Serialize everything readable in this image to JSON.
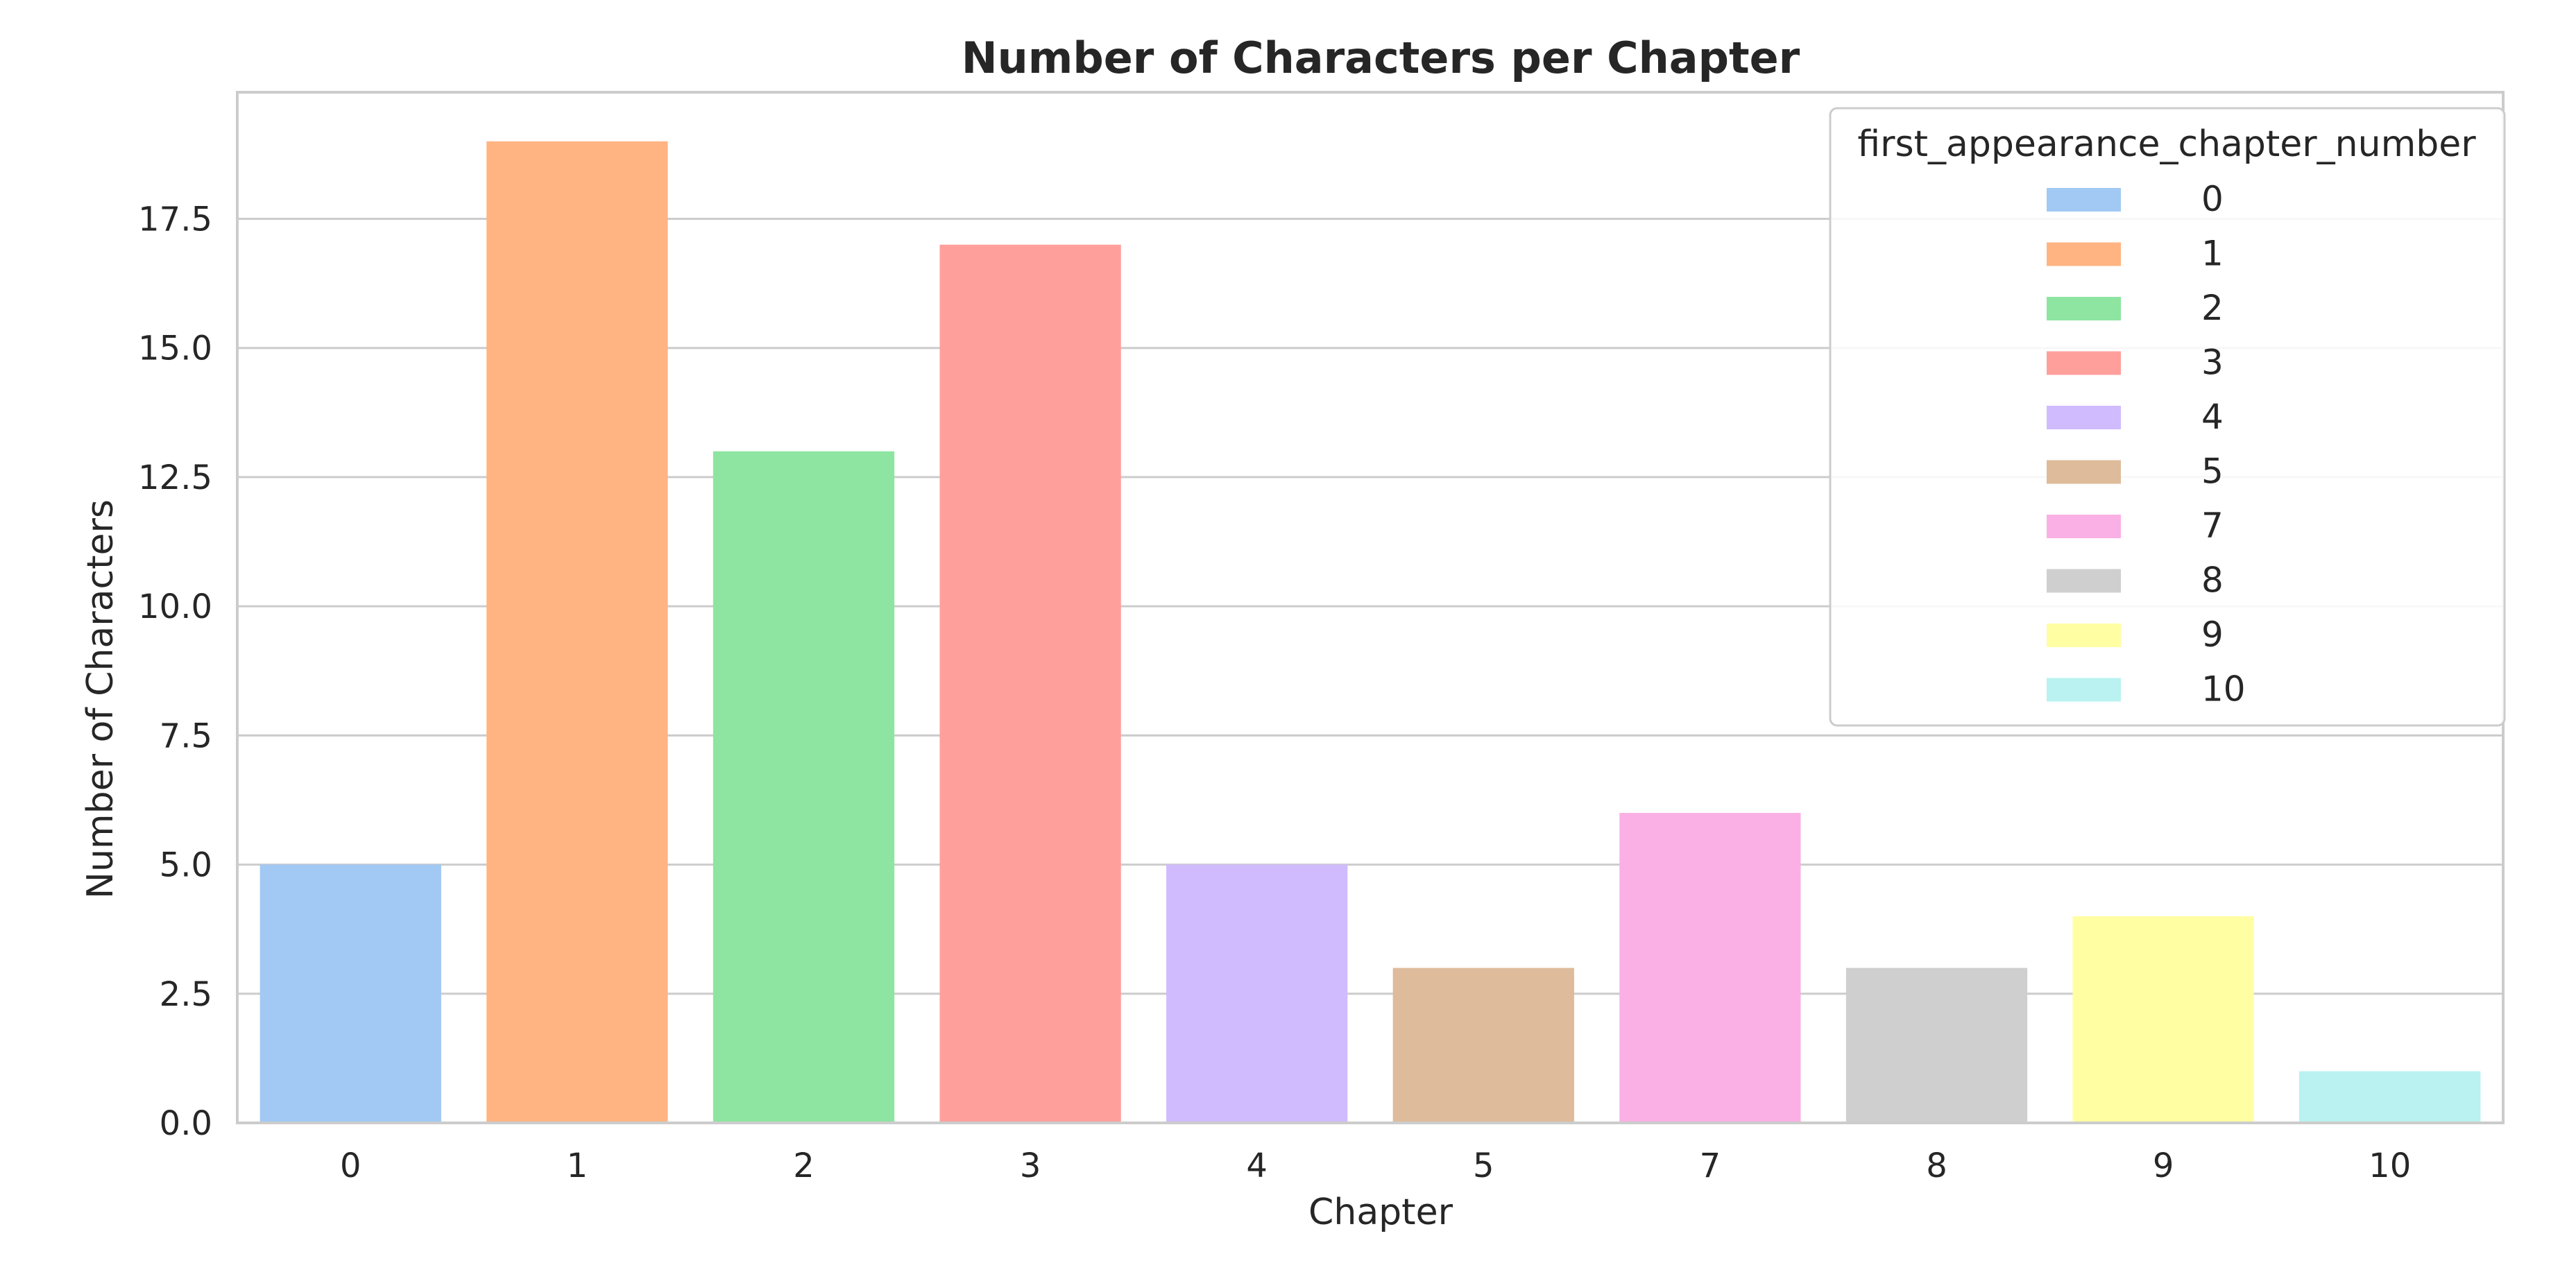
{
  "chart_data": {
    "type": "bar",
    "title": "Number of Characters per Chapter",
    "xlabel": "Chapter",
    "ylabel": "Number of Characters",
    "categories": [
      "0",
      "1",
      "2",
      "3",
      "4",
      "5",
      "7",
      "8",
      "9",
      "10"
    ],
    "values": [
      5,
      19,
      13,
      17,
      5,
      3,
      6,
      3,
      4,
      1
    ],
    "colors": [
      "#a1c9f4",
      "#ffb482",
      "#8de5a1",
      "#ff9f9b",
      "#d0bbff",
      "#debb9b",
      "#fab0e4",
      "#cfcfcf",
      "#fffea3",
      "#b9f2f0"
    ],
    "ylim": [
      0,
      19.95
    ],
    "yticks": [
      0.0,
      2.5,
      5.0,
      7.5,
      10.0,
      12.5,
      15.0,
      17.5
    ],
    "ytick_labels": [
      "0.0",
      "2.5",
      "5.0",
      "7.5",
      "10.0",
      "12.5",
      "15.0",
      "17.5"
    ],
    "grid": "horizontal",
    "legend": {
      "title": "first_appearance_chapter_number",
      "placement": "top-right",
      "labels": [
        "0",
        "1",
        "2",
        "3",
        "4",
        "5",
        "7",
        "8",
        "9",
        "10"
      ]
    }
  }
}
